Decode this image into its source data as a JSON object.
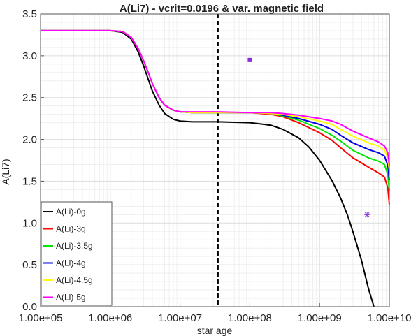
{
  "chart_data": {
    "type": "line",
    "title": "A(Li7) - vcrit=0.0196 & var. magnetic field",
    "xlabel": "star age",
    "ylabel": "A(Li7)",
    "xscale": "log",
    "xlim": [
      100000,
      10000000000
    ],
    "ylim": [
      0,
      3.5
    ],
    "xticks": [
      {
        "value": 100000,
        "label": "1.00e+05"
      },
      {
        "value": 1000000,
        "label": "1.00e+06"
      },
      {
        "value": 10000000,
        "label": "1.00e+07"
      },
      {
        "value": 100000000,
        "label": "1.00e+08"
      },
      {
        "value": 1000000000,
        "label": "1.00e+09"
      },
      {
        "value": 10000000000,
        "label": "1.00e+10"
      }
    ],
    "yticks": [
      {
        "value": 0,
        "label": "0.0"
      },
      {
        "value": 0.5,
        "label": "0.5"
      },
      {
        "value": 1,
        "label": "1.0"
      },
      {
        "value": 1.5,
        "label": "1.5"
      },
      {
        "value": 2,
        "label": "2.0"
      },
      {
        "value": 2.5,
        "label": "2.5"
      },
      {
        "value": 3,
        "label": "3.0"
      },
      {
        "value": 3.5,
        "label": "3.5"
      }
    ],
    "grid": true,
    "legend_position": "bottom-left",
    "vertical_line": {
      "x": 35000000,
      "style": "dashed",
      "color": "#000000"
    },
    "markers": [
      {
        "shape": "square",
        "x": 100000000,
        "y": 2.95,
        "color": "#8a2be2"
      },
      {
        "shape": "asterisk",
        "x": 4800000000,
        "y": 1.1,
        "color": "#8a2be2"
      }
    ],
    "series": [
      {
        "name": "A(Li)-0g",
        "color": "#000000",
        "x": [
          100000,
          1000000,
          1500000,
          2000000,
          2500000,
          3000000,
          3500000,
          4000000,
          5000000,
          6000000,
          8000000,
          10000000,
          15000000,
          35000000,
          100000000,
          200000000,
          300000000,
          500000000,
          700000000,
          1000000000,
          1500000000,
          2000000000,
          2500000000,
          3000000000,
          4000000000,
          5000000000,
          6000000000
        ],
        "y": [
          3.3,
          3.3,
          3.28,
          3.2,
          3.05,
          2.88,
          2.72,
          2.58,
          2.41,
          2.31,
          2.24,
          2.22,
          2.21,
          2.21,
          2.2,
          2.17,
          2.12,
          2.02,
          1.91,
          1.75,
          1.51,
          1.3,
          1.1,
          0.9,
          0.55,
          0.22,
          0.0
        ]
      },
      {
        "name": "A(Li)-3g",
        "color": "#ff0000",
        "x": [
          100000,
          1000000,
          1500000,
          2000000,
          2500000,
          3000000,
          3500000,
          4000000,
          5000000,
          6000000,
          8000000,
          10000000,
          15000000,
          35000000,
          100000000,
          200000000,
          300000000,
          500000000,
          1000000000,
          1500000000,
          2000000000,
          3000000000,
          5000000000,
          7000000000,
          8500000000,
          9500000000,
          10000000000
        ],
        "y": [
          3.3,
          3.3,
          3.29,
          3.22,
          3.09,
          2.94,
          2.8,
          2.67,
          2.5,
          2.41,
          2.35,
          2.33,
          2.32,
          2.32,
          2.32,
          2.3,
          2.27,
          2.2,
          2.08,
          1.99,
          1.9,
          1.78,
          1.67,
          1.6,
          1.55,
          1.42,
          1.22
        ]
      },
      {
        "name": "A(Li)-3.5g",
        "color": "#00e600",
        "x": [
          100000,
          1000000,
          1500000,
          2000000,
          2500000,
          3000000,
          3500000,
          4000000,
          5000000,
          6000000,
          8000000,
          10000000,
          15000000,
          35000000,
          100000000,
          200000000,
          300000000,
          500000000,
          1000000000,
          1500000000,
          2000000000,
          3000000000,
          5000000000,
          7000000000,
          8500000000,
          9500000000,
          10000000000
        ],
        "y": [
          3.3,
          3.3,
          3.29,
          3.22,
          3.09,
          2.94,
          2.8,
          2.67,
          2.5,
          2.41,
          2.35,
          2.33,
          2.32,
          2.32,
          2.32,
          2.31,
          2.28,
          2.23,
          2.13,
          2.05,
          1.98,
          1.87,
          1.78,
          1.74,
          1.7,
          1.58,
          1.39
        ]
      },
      {
        "name": "A(Li)-4g",
        "color": "#0000e6",
        "x": [
          100000,
          1000000,
          1500000,
          2000000,
          2500000,
          3000000,
          3500000,
          4000000,
          5000000,
          6000000,
          8000000,
          10000000,
          15000000,
          35000000,
          100000000,
          200000000,
          300000000,
          500000000,
          1000000000,
          1500000000,
          2000000000,
          3000000000,
          5000000000,
          7000000000,
          8500000000,
          9500000000,
          10000000000
        ],
        "y": [
          3.3,
          3.3,
          3.29,
          3.22,
          3.09,
          2.94,
          2.8,
          2.67,
          2.5,
          2.41,
          2.35,
          2.33,
          2.32,
          2.32,
          2.32,
          2.31,
          2.29,
          2.25,
          2.18,
          2.12,
          2.05,
          1.96,
          1.88,
          1.84,
          1.8,
          1.69,
          1.51
        ]
      },
      {
        "name": "A(Li)-4.5g",
        "color": "#ffff00",
        "x": [
          100000,
          1000000,
          1500000,
          2000000,
          2500000,
          3000000,
          3500000,
          4000000,
          5000000,
          6000000,
          8000000,
          10000000,
          15000000,
          35000000,
          100000000,
          200000000,
          300000000,
          500000000,
          1000000000,
          1500000000,
          2000000000,
          3000000000,
          5000000000,
          7000000000,
          8500000000,
          9500000000,
          10000000000
        ],
        "y": [
          3.3,
          3.3,
          3.29,
          3.22,
          3.09,
          2.94,
          2.8,
          2.67,
          2.5,
          2.41,
          2.35,
          2.33,
          2.32,
          2.32,
          2.32,
          2.31,
          2.3,
          2.27,
          2.22,
          2.18,
          2.12,
          2.04,
          1.96,
          1.92,
          1.87,
          1.78,
          1.63
        ]
      },
      {
        "name": "A(Li)-5g",
        "color": "#ff00ff",
        "x": [
          100000,
          1000000,
          1500000,
          2000000,
          2500000,
          3000000,
          3500000,
          4000000,
          5000000,
          6000000,
          8000000,
          10000000,
          15000000,
          35000000,
          100000000,
          200000000,
          300000000,
          500000000,
          1000000000,
          1500000000,
          2000000000,
          3000000000,
          5000000000,
          7000000000,
          8500000000,
          9500000000,
          10000000000
        ],
        "y": [
          3.3,
          3.3,
          3.29,
          3.22,
          3.09,
          2.94,
          2.8,
          2.67,
          2.5,
          2.41,
          2.35,
          2.33,
          2.33,
          2.33,
          2.32,
          2.32,
          2.31,
          2.29,
          2.25,
          2.22,
          2.18,
          2.1,
          2.02,
          1.97,
          1.92,
          1.84,
          1.69
        ]
      }
    ]
  }
}
